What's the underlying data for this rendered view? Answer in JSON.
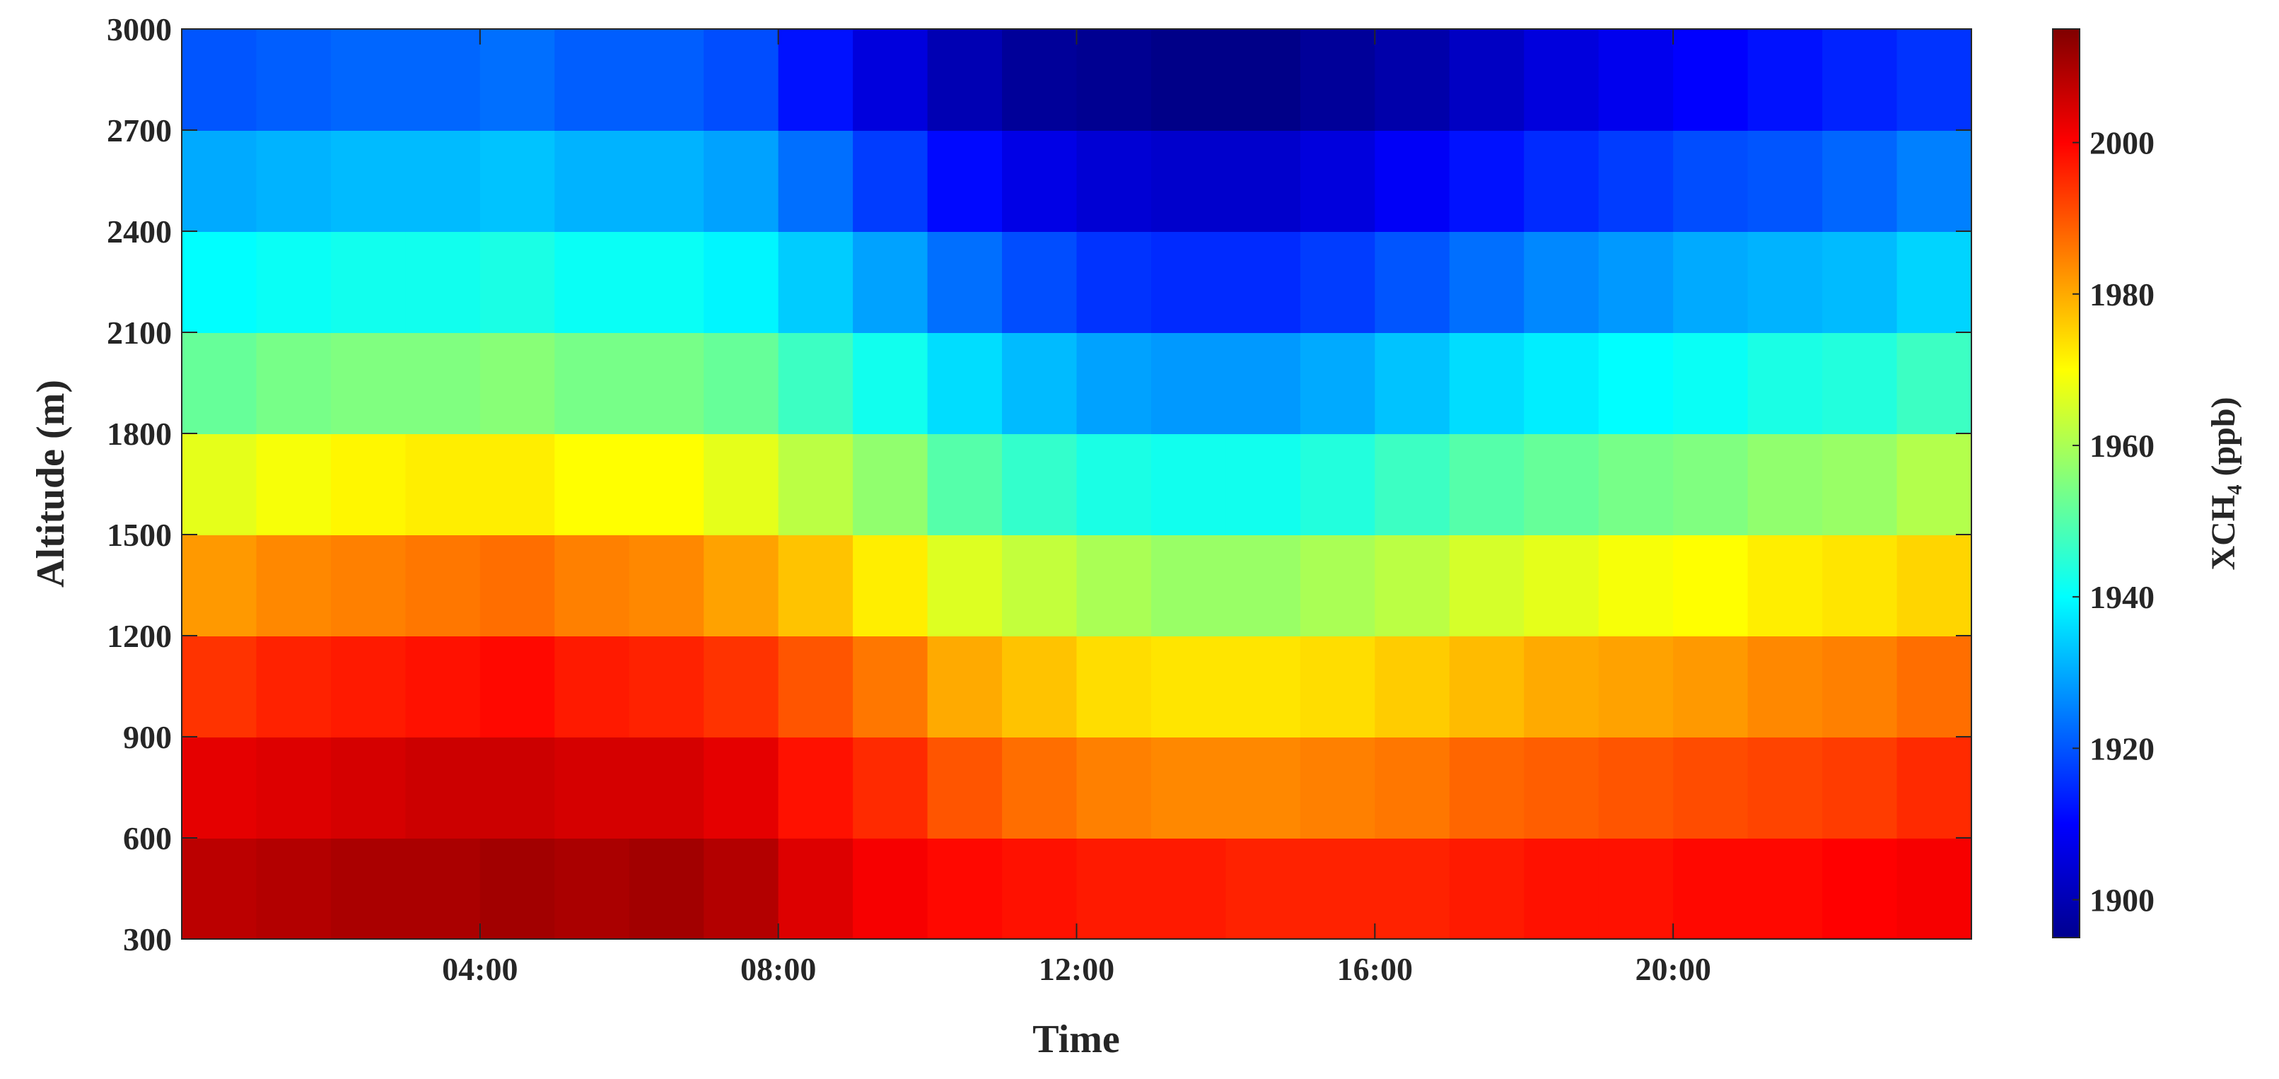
{
  "chart_data": {
    "type": "heatmap",
    "x_label": "Time",
    "y_label": "Altitude (m)",
    "colorbar_label": "XCH₄ (ppb)",
    "colormap": "jet",
    "x": [
      0.5,
      1.5,
      2.5,
      3.5,
      4.5,
      5.5,
      6.5,
      7.5,
      8.5,
      9.5,
      10.5,
      11.5,
      12.5,
      13.5,
      14.5,
      15.5,
      16.5,
      17.5,
      18.5,
      19.5,
      20.5,
      21.5,
      22.5,
      23.5
    ],
    "y": [
      450,
      750,
      1050,
      1350,
      1650,
      1950,
      2250,
      2550,
      2850
    ],
    "z": [
      [
        2008,
        2009,
        2010,
        2010,
        2011,
        2010,
        2011,
        2009,
        2004,
        2001,
        1999,
        1998,
        1997,
        1997,
        1996,
        1996,
        1996,
        1997,
        1998,
        1998,
        1999,
        1999,
        2000,
        2001
      ],
      [
        2003,
        2004,
        2005,
        2006,
        2006,
        2005,
        2005,
        2003,
        1998,
        1995,
        1990,
        1987,
        1985,
        1984,
        1984,
        1985,
        1986,
        1988,
        1989,
        1990,
        1991,
        1992,
        1993,
        1995
      ],
      [
        1994,
        1996,
        1997,
        1998,
        1999,
        1997,
        1996,
        1994,
        1990,
        1986,
        1980,
        1977,
        1974,
        1973,
        1973,
        1974,
        1976,
        1978,
        1980,
        1981,
        1982,
        1984,
        1985,
        1987
      ],
      [
        1982,
        1984,
        1985,
        1986,
        1987,
        1985,
        1984,
        1981,
        1977,
        1972,
        1966,
        1963,
        1960,
        1958,
        1958,
        1960,
        1962,
        1965,
        1967,
        1969,
        1970,
        1972,
        1973,
        1975
      ],
      [
        1967,
        1969,
        1971,
        1972,
        1972,
        1970,
        1970,
        1967,
        1962,
        1957,
        1950,
        1946,
        1943,
        1942,
        1942,
        1944,
        1947,
        1950,
        1952,
        1954,
        1955,
        1957,
        1958,
        1961
      ],
      [
        1952,
        1954,
        1955,
        1955,
        1956,
        1954,
        1954,
        1952,
        1947,
        1942,
        1936,
        1932,
        1929,
        1928,
        1928,
        1930,
        1933,
        1936,
        1938,
        1940,
        1941,
        1943,
        1944,
        1947
      ],
      [
        1940,
        1941,
        1942,
        1942,
        1943,
        1941,
        1941,
        1939,
        1934,
        1929,
        1923,
        1919,
        1916,
        1915,
        1915,
        1917,
        1920,
        1923,
        1926,
        1928,
        1930,
        1931,
        1932,
        1935
      ],
      [
        1930,
        1931,
        1932,
        1932,
        1933,
        1931,
        1931,
        1929,
        1923,
        1917,
        1911,
        1907,
        1905,
        1904,
        1904,
        1906,
        1909,
        1912,
        1915,
        1917,
        1919,
        1920,
        1922,
        1925
      ],
      [
        1920,
        1921,
        1922,
        1922,
        1923,
        1921,
        1921,
        1919,
        1912,
        1906,
        1901,
        1898,
        1897,
        1896,
        1896,
        1898,
        1900,
        1903,
        1906,
        1908,
        1910,
        1912,
        1914,
        1916
      ]
    ],
    "xlim": [
      0,
      24
    ],
    "xticks": [
      {
        "value": 4,
        "label": "04:00"
      },
      {
        "value": 8,
        "label": "08:00"
      },
      {
        "value": 12,
        "label": "12:00"
      },
      {
        "value": 16,
        "label": "16:00"
      },
      {
        "value": 20,
        "label": "20:00"
      }
    ],
    "ylim": [
      300,
      3000
    ],
    "yticks": [
      300,
      600,
      900,
      1200,
      1500,
      1800,
      2100,
      2400,
      2700,
      3000
    ],
    "clim": [
      1895,
      2015
    ],
    "cticks": [
      1900,
      1920,
      1940,
      1960,
      1980,
      2000
    ]
  }
}
